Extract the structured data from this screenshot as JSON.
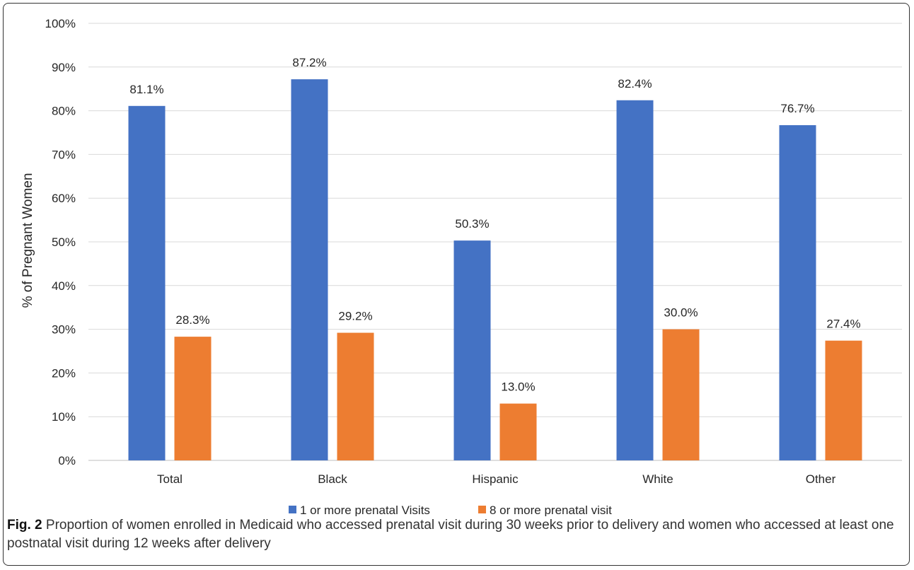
{
  "chart_data": {
    "type": "bar",
    "categories": [
      "Total",
      "Black",
      "Hispanic",
      "White",
      "Other"
    ],
    "series": [
      {
        "name": "1 or more prenatal Visits",
        "values": [
          81.1,
          87.2,
          50.3,
          82.4,
          76.7
        ],
        "color": "#4472C4"
      },
      {
        "name": "8 or more prenatal visit",
        "values": [
          28.3,
          29.2,
          13.0,
          30.0,
          27.4
        ],
        "color": "#ED7D31"
      }
    ],
    "data_labels": [
      [
        "81.1%",
        "87.2%",
        "50.3%",
        "82.4%",
        "76.7%"
      ],
      [
        "28.3%",
        "29.2%",
        "13.0%",
        "30.0%",
        "27.4%"
      ]
    ],
    "ylabel": "% of Pregnant Women",
    "xlabel": "",
    "ylim": [
      0,
      100
    ],
    "yticks": [
      0,
      10,
      20,
      30,
      40,
      50,
      60,
      70,
      80,
      90,
      100
    ],
    "ytick_labels": [
      "0%",
      "10%",
      "20%",
      "30%",
      "40%",
      "50%",
      "60%",
      "70%",
      "80%",
      "90%",
      "100%"
    ],
    "grid": true,
    "legend_position": "bottom"
  },
  "caption": {
    "label": "Fig. 2",
    "text": " Proportion of women enrolled in Medicaid who accessed prenatal visit during 30 weeks prior to delivery and women who accessed at least one postnatal visit during 12 weeks after delivery"
  }
}
